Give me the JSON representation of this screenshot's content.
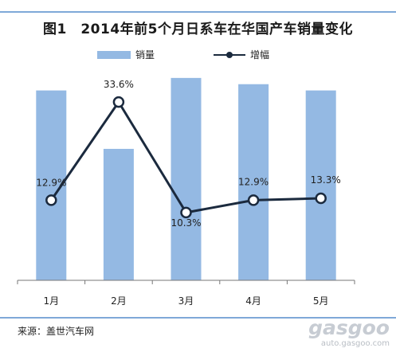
{
  "chart_data": {
    "type": "bar",
    "title": "图1　2014年前5个月日系车在华国产车销量变化",
    "categories": [
      "1月",
      "2月",
      "3月",
      "4月",
      "5月"
    ],
    "series": [
      {
        "name": "销量",
        "type": "bar",
        "values": [
          91,
          63,
          97,
          94,
          91
        ],
        "color": "#94b9e3"
      },
      {
        "name": "增幅",
        "type": "line",
        "values": [
          12.9,
          33.6,
          10.3,
          12.9,
          13.3
        ],
        "labels": [
          "12.9%",
          "33.6%",
          "10.3%",
          "12.9%",
          "13.3%"
        ],
        "color": "#1b2a3e"
      }
    ],
    "bar_ylim": [
      0,
      100
    ],
    "line_ylim": [
      -4,
      40
    ],
    "grid": false,
    "legend": "top"
  },
  "footer": {
    "source": "来源：盖世汽车网",
    "watermark_url": "auto.gasgoo.com"
  }
}
